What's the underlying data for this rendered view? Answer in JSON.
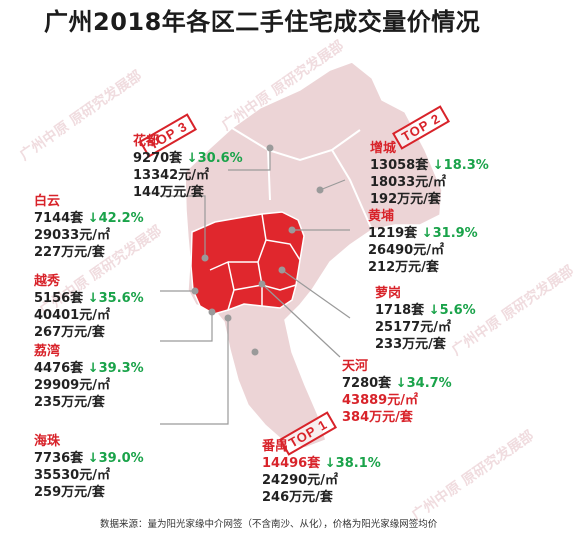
{
  "title": "广州2018年各区二手住宅成交量价情况",
  "source_note": "数据来源：量为阳光家缘中介网签（不含南沙、从化），价格为阳光家缘网签均价",
  "watermark": "广州中原 原研究发展部",
  "colors": {
    "map_base": "#ecd4d6",
    "highlight": "#e0272d",
    "leader": "#a0a0a0",
    "title": "#1c1c1c"
  },
  "districts": {
    "huadu": {
      "name": "花都",
      "deals": "9270套",
      "change": "↓30.6%",
      "price": "13342元/㎡",
      "total": "144万元/套"
    },
    "zengcheng": {
      "name": "增城",
      "deals": "13058套",
      "change": "↓18.3%",
      "price": "18033元/㎡",
      "total": "192万元/套"
    },
    "baiyun": {
      "name": "白云",
      "deals": "7144套",
      "change": "↓42.2%",
      "price": "29033元/㎡",
      "total": "227万元/套"
    },
    "huangpu": {
      "name": "黄埔",
      "deals": "1219套",
      "change": "↓31.9%",
      "price": "26490元/㎡",
      "total": "212万元/套"
    },
    "yuexiu": {
      "name": "越秀",
      "deals": "5156套",
      "change": "↓35.6%",
      "price": "40401元/㎡",
      "total": "267万元/套"
    },
    "luogang": {
      "name": "萝岗",
      "deals": "1718套",
      "change": "↓5.6%",
      "price": "25177元/㎡",
      "total": "233万元/套"
    },
    "liwan": {
      "name": "荔湾",
      "deals": "4476套",
      "change": "↓39.3%",
      "price": "29909元/㎡",
      "total": "235万元/套"
    },
    "tianhe": {
      "name": "天河",
      "deals": "7280套",
      "change": "↓34.7%",
      "price": "43889元/㎡",
      "total": "384万元/套"
    },
    "haizhu": {
      "name": "海珠",
      "deals": "7736套",
      "change": "↓39.0%",
      "price": "35530元/㎡",
      "total": "259万元/套"
    },
    "panyu": {
      "name": "番禺",
      "deals": "14496套",
      "change": "↓38.1%",
      "price": "24290元/㎡",
      "total": "246万元/套"
    }
  },
  "stamps": {
    "top1": "TOP 1",
    "top2": "TOP 2",
    "top3": "TOP 3"
  }
}
